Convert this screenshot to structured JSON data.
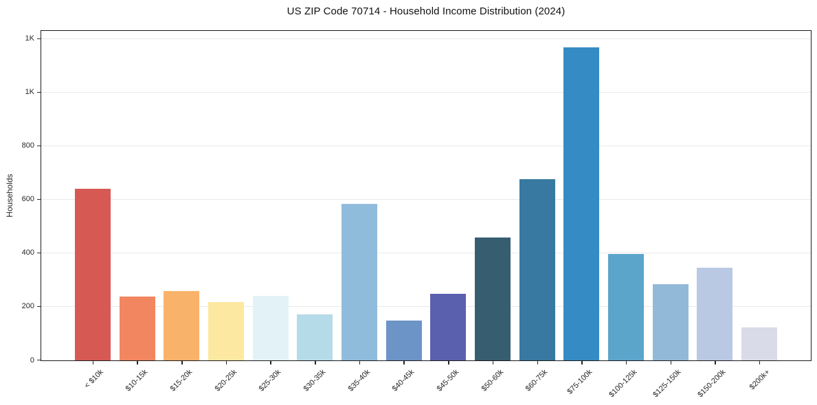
{
  "chart_data": {
    "type": "bar",
    "title": "US ZIP Code 70714 - Household Income Distribution (2024)",
    "xlabel": "",
    "ylabel": "Households",
    "categories": [
      "< $10k",
      "$10-15k",
      "$15-20k",
      "$20-25k",
      "$25-30k",
      "$30-35k",
      "$35-40k",
      "$40-45k",
      "$45-50k",
      "$50-60k",
      "$60-75k",
      "$75-100k",
      "$100-125k",
      "$125-150k",
      "$150-200k",
      "$200k+"
    ],
    "values": [
      640,
      238,
      259,
      218,
      241,
      173,
      584,
      148,
      248,
      459,
      678,
      1168,
      398,
      285,
      347,
      122
    ],
    "bar_colors": [
      "#d65953",
      "#f28661",
      "#f9b269",
      "#fce8a0",
      "#e3f2f6",
      "#b5dbe9",
      "#90bcdc",
      "#6c94c6",
      "#5b60ae",
      "#365e70",
      "#3779a0",
      "#358bc4",
      "#5ba5cb",
      "#93b9d9",
      "#b9c9e3",
      "#d9dbe8"
    ],
    "ylim": [
      0,
      1228
    ],
    "yticks": {
      "values": [
        0,
        200,
        400,
        600,
        800,
        1000,
        1200
      ],
      "labels": [
        "0",
        "200",
        "400",
        "600",
        "800",
        "1K",
        "1K"
      ]
    },
    "grid": "horizontal",
    "legend": "none",
    "colors": {
      "background": "#ffffff",
      "spine": "#1a1a1a",
      "grid": "#e9e9e9",
      "tick_label": "#262626",
      "title": "#111111"
    }
  }
}
